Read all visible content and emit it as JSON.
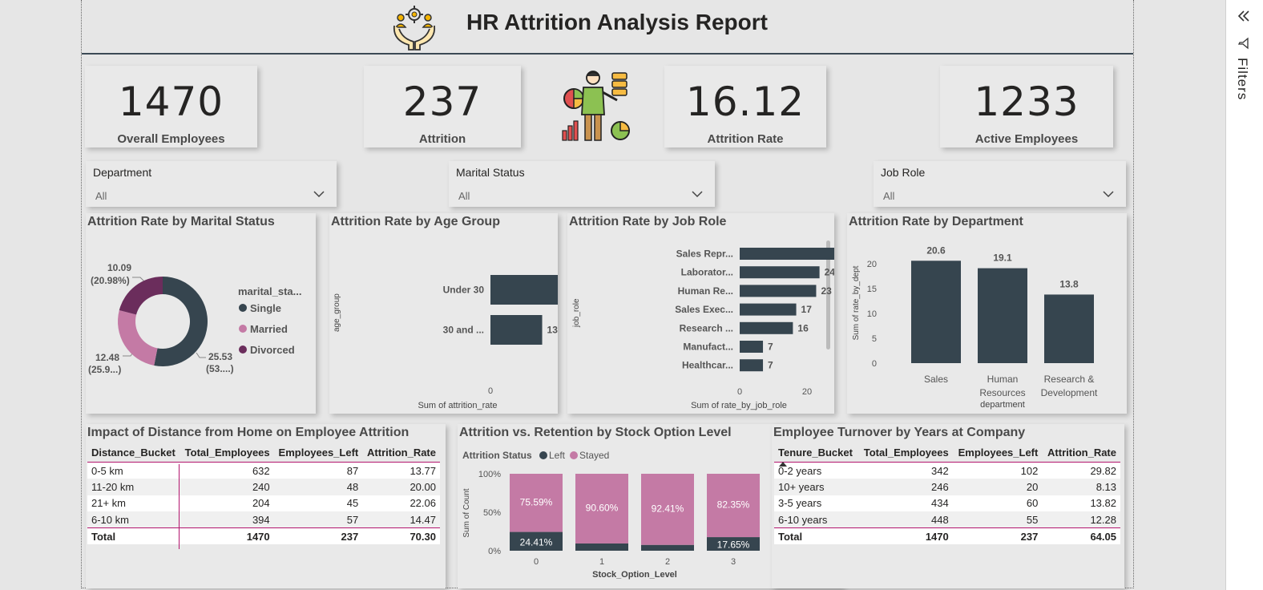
{
  "header": {
    "title": "HR Attrition Analysis Report",
    "logo_icon": "hands-gear-people-icon"
  },
  "kpis": [
    {
      "value": "1470",
      "label": "Overall Employees"
    },
    {
      "value": "237",
      "label": "Attrition"
    },
    {
      "value": "16.12",
      "label": "Attrition Rate"
    },
    {
      "value": "1233",
      "label": "Active Employees"
    }
  ],
  "illustration_icon": "analyst-presenting-charts-icon",
  "slicers": [
    {
      "label": "Department",
      "value": "All"
    },
    {
      "label": "Marital Status",
      "value": "All"
    },
    {
      "label": "Job Role",
      "value": "All"
    }
  ],
  "filters_pane": {
    "label": "Filters",
    "collapse_icon": "double-chevron-left-icon",
    "filter_icon": "funnel-icon"
  },
  "colors": {
    "dark": "#36454f",
    "pink": "#c47aa5",
    "purple": "#6b2d5c",
    "accent_line": "#b3156e"
  },
  "chart_data": [
    {
      "type": "pie",
      "title": "Attrition Rate by Marital Status",
      "legend_title": "marital_sta...",
      "legend_placement": "right",
      "categories": [
        "Single",
        "Married",
        "Divorced"
      ],
      "values": [
        25.53,
        12.48,
        10.09
      ],
      "labels": [
        {
          "value": "25.53",
          "pct": "(53....)"
        },
        {
          "value": "12.48",
          "pct": "(25.9...)"
        },
        {
          "value": "10.09",
          "pct": "(20.98%)"
        }
      ],
      "colors": [
        "#36454f",
        "#c47aa5",
        "#6b2d5c"
      ]
    },
    {
      "type": "bar",
      "orientation": "horizontal",
      "title": "Attrition Rate by Age Group",
      "ylabel": "age_group",
      "xlabel": "Sum of attrition_rate",
      "categories": [
        "Under 30",
        "30 and ..."
      ],
      "values": [
        28,
        13
      ],
      "xlim": [
        0,
        28
      ],
      "xticks": [
        "0",
        "20"
      ]
    },
    {
      "type": "bar",
      "orientation": "horizontal",
      "title": "Attrition Rate by Job Role",
      "ylabel": "job_role",
      "xlabel": "Sum of rate_by_job_role",
      "categories": [
        "Sales Repr...",
        "Laborator...",
        "Human Re...",
        "Sales Exec...",
        "Research ...",
        "Manufact...",
        "Healthcar..."
      ],
      "values": [
        40,
        24,
        23,
        17,
        16,
        7,
        7
      ],
      "xlim": [
        0,
        40
      ],
      "xticks": [
        "0",
        "20",
        "40"
      ]
    },
    {
      "type": "bar",
      "title": "Attrition Rate by Department",
      "ylabel": "Sum of rate_by_dept",
      "xlabel": "department",
      "categories": [
        "Sales",
        "Human Resources",
        "Research & Development"
      ],
      "category_lines": [
        [
          "Sales"
        ],
        [
          "Human",
          "Resources"
        ],
        [
          "Research &",
          "Development"
        ]
      ],
      "values": [
        20.6,
        19.1,
        13.8
      ],
      "ylim": [
        0,
        20
      ],
      "yticks": [
        "0",
        "5",
        "10",
        "15",
        "20"
      ]
    },
    {
      "type": "bar",
      "stacked": "100%",
      "title": "Attrition vs. Retention by Stock Option Level",
      "legend_title": "Attrition Status",
      "legend_placement": "top-left",
      "xlabel": "Stock_Option_Level",
      "ylabel": "Sum of Count",
      "categories": [
        "0",
        "1",
        "2",
        "3"
      ],
      "series": [
        {
          "name": "Left",
          "values": [
            24.41,
            9.4,
            7.59,
            17.65
          ],
          "labels": [
            "24.41%",
            "",
            "",
            "17.65%"
          ]
        },
        {
          "name": "Stayed",
          "values": [
            75.59,
            90.6,
            92.41,
            82.35
          ],
          "labels": [
            "75.59%",
            "90.60%",
            "92.41%",
            "82.35%"
          ]
        }
      ],
      "yticks": [
        "0%",
        "50%",
        "100%"
      ]
    },
    {
      "type": "table",
      "title": "Impact of Distance from Home on Employee Attrition",
      "columns": [
        "Distance_Bucket",
        "Total_Employees",
        "Employees_Left",
        "Attrition_Rate"
      ],
      "rows": [
        [
          "0-5 km",
          "632",
          "87",
          "13.77"
        ],
        [
          "11-20 km",
          "240",
          "48",
          "20.00"
        ],
        [
          "21+ km",
          "204",
          "45",
          "22.06"
        ],
        [
          "6-10 km",
          "394",
          "57",
          "14.47"
        ]
      ],
      "total": [
        "Total",
        "1470",
        "237",
        "70.30"
      ]
    },
    {
      "type": "table",
      "title": "Employee Turnover by Years at Company",
      "columns": [
        "Tenure_Bucket",
        "Total_Employees",
        "Employees_Left",
        "Attrition_Rate"
      ],
      "rows": [
        [
          "0-2 years",
          "342",
          "102",
          "29.82"
        ],
        [
          "10+ years",
          "246",
          "20",
          "8.13"
        ],
        [
          "3-5 years",
          "434",
          "60",
          "13.82"
        ],
        [
          "6-10 years",
          "448",
          "55",
          "12.28"
        ]
      ],
      "total": [
        "Total",
        "1470",
        "237",
        "64.05"
      ]
    }
  ]
}
